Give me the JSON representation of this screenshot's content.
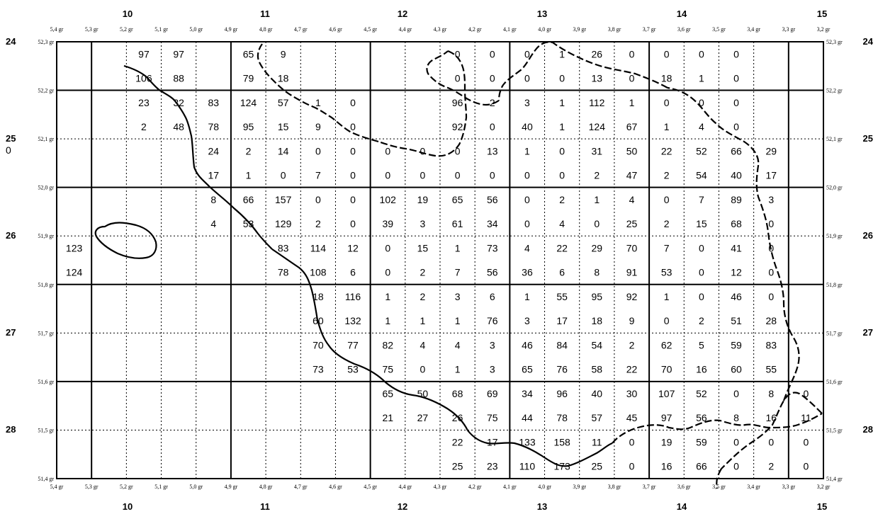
{
  "top_sheet_labels": [
    "10",
    "11",
    "12",
    "13",
    "14",
    "15"
  ],
  "bottom_sheet_labels": [
    "10",
    "11",
    "12",
    "13",
    "14",
    "15"
  ],
  "left_sheet_labels": [
    "24",
    "25",
    "26",
    "27",
    "28"
  ],
  "right_sheet_labels": [
    "24",
    "25",
    "26",
    "27",
    "28"
  ],
  "stray_label": "0",
  "longitude_ticks": [
    "5,4 gr",
    "5,3 gr",
    "5,2 gr",
    "5,1 gr",
    "5,0 gr",
    "4,9 gr",
    "4,8 gr",
    "4,7 gr",
    "4,6 gr",
    "4,5 gr",
    "4,4 gr",
    "4,3 gr",
    "4,2 gr",
    "4,1 gr",
    "4,0 gr",
    "3,9 gr",
    "3,8 gr",
    "3,7 gr",
    "3,6 gr",
    "3,5 gr",
    "3,4 gr",
    "3,3 gr",
    "3,2 gr"
  ],
  "latitude_ticks": [
    "52,3 gr",
    "52,2 gr",
    "52,1 gr",
    "52,0 gr",
    "51,9 gr",
    "51,8 gr",
    "51,7 gr",
    "51,6 gr",
    "51,5 gr",
    "51,4 gr"
  ],
  "cell_values": [
    {
      "lon": 5.15,
      "lat": 52.25,
      "top": "97",
      "bottom": "106"
    },
    {
      "lon": 5.05,
      "lat": 52.25,
      "top": "97",
      "bottom": "88"
    },
    {
      "lon": 4.85,
      "lat": 52.25,
      "top": "65",
      "bottom": "79"
    },
    {
      "lon": 4.75,
      "lat": 52.25,
      "top": "9",
      "bottom": "18"
    },
    {
      "lon": 4.25,
      "lat": 52.25,
      "top": "0",
      "bottom": "0"
    },
    {
      "lon": 4.15,
      "lat": 52.25,
      "top": "0",
      "bottom": "0"
    },
    {
      "lon": 4.05,
      "lat": 52.25,
      "top": "0",
      "bottom": "0"
    },
    {
      "lon": 3.95,
      "lat": 52.25,
      "top": "1",
      "bottom": "0"
    },
    {
      "lon": 3.85,
      "lat": 52.25,
      "top": "26",
      "bottom": "13"
    },
    {
      "lon": 3.75,
      "lat": 52.25,
      "top": "0",
      "bottom": "0"
    },
    {
      "lon": 3.65,
      "lat": 52.25,
      "top": "0",
      "bottom": "18"
    },
    {
      "lon": 3.55,
      "lat": 52.25,
      "top": "0",
      "bottom": "1"
    },
    {
      "lon": 3.45,
      "lat": 52.25,
      "top": "0",
      "bottom": "0"
    },
    {
      "lon": 5.15,
      "lat": 52.15,
      "top": "23",
      "bottom": "2"
    },
    {
      "lon": 5.05,
      "lat": 52.15,
      "top": "32",
      "bottom": "48"
    },
    {
      "lon": 4.95,
      "lat": 52.15,
      "top": "83",
      "bottom": "78"
    },
    {
      "lon": 4.85,
      "lat": 52.15,
      "top": "124",
      "bottom": "95"
    },
    {
      "lon": 4.75,
      "lat": 52.15,
      "top": "57",
      "bottom": "15"
    },
    {
      "lon": 4.65,
      "lat": 52.15,
      "top": "1",
      "bottom": "9"
    },
    {
      "lon": 4.55,
      "lat": 52.15,
      "top": "0",
      "bottom": "0"
    },
    {
      "lon": 4.25,
      "lat": 52.15,
      "top": "96",
      "bottom": "92"
    },
    {
      "lon": 4.15,
      "lat": 52.15,
      "top": "2",
      "bottom": "0"
    },
    {
      "lon": 4.05,
      "lat": 52.15,
      "top": "3",
      "bottom": "40"
    },
    {
      "lon": 3.95,
      "lat": 52.15,
      "top": "1",
      "bottom": "1"
    },
    {
      "lon": 3.85,
      "lat": 52.15,
      "top": "112",
      "bottom": "124"
    },
    {
      "lon": 3.75,
      "lat": 52.15,
      "top": "1",
      "bottom": "67"
    },
    {
      "lon": 3.65,
      "lat": 52.15,
      "top": "0",
      "bottom": "1"
    },
    {
      "lon": 3.55,
      "lat": 52.15,
      "top": "0",
      "bottom": "4"
    },
    {
      "lon": 3.45,
      "lat": 52.15,
      "top": "0",
      "bottom": "0"
    },
    {
      "lon": 4.95,
      "lat": 52.05,
      "top": "24",
      "bottom": "17"
    },
    {
      "lon": 4.85,
      "lat": 52.05,
      "top": "2",
      "bottom": "1"
    },
    {
      "lon": 4.75,
      "lat": 52.05,
      "top": "14",
      "bottom": "0"
    },
    {
      "lon": 4.65,
      "lat": 52.05,
      "top": "0",
      "bottom": "7"
    },
    {
      "lon": 4.55,
      "lat": 52.05,
      "top": "0",
      "bottom": "0"
    },
    {
      "lon": 4.45,
      "lat": 52.05,
      "top": "0",
      "bottom": "0"
    },
    {
      "lon": 4.35,
      "lat": 52.05,
      "top": "0",
      "bottom": "0"
    },
    {
      "lon": 4.25,
      "lat": 52.05,
      "top": "0",
      "bottom": "0"
    },
    {
      "lon": 4.15,
      "lat": 52.05,
      "top": "13",
      "bottom": "0"
    },
    {
      "lon": 4.05,
      "lat": 52.05,
      "top": "1",
      "bottom": "0"
    },
    {
      "lon": 3.95,
      "lat": 52.05,
      "top": "0",
      "bottom": "0"
    },
    {
      "lon": 3.85,
      "lat": 52.05,
      "top": "31",
      "bottom": "2"
    },
    {
      "lon": 3.75,
      "lat": 52.05,
      "top": "50",
      "bottom": "47"
    },
    {
      "lon": 3.65,
      "lat": 52.05,
      "top": "22",
      "bottom": "2"
    },
    {
      "lon": 3.55,
      "lat": 52.05,
      "top": "52",
      "bottom": "54"
    },
    {
      "lon": 3.45,
      "lat": 52.05,
      "top": "66",
      "bottom": "40"
    },
    {
      "lon": 3.35,
      "lat": 52.05,
      "top": "29",
      "bottom": "17"
    },
    {
      "lon": 4.95,
      "lat": 51.95,
      "top": "8",
      "bottom": "4"
    },
    {
      "lon": 4.85,
      "lat": 51.95,
      "top": "66",
      "bottom": "53"
    },
    {
      "lon": 4.75,
      "lat": 51.95,
      "top": "157",
      "bottom": "129"
    },
    {
      "lon": 4.65,
      "lat": 51.95,
      "top": "0",
      "bottom": "2"
    },
    {
      "lon": 4.55,
      "lat": 51.95,
      "top": "0",
      "bottom": "0"
    },
    {
      "lon": 4.45,
      "lat": 51.95,
      "top": "102",
      "bottom": "39"
    },
    {
      "lon": 4.35,
      "lat": 51.95,
      "top": "19",
      "bottom": "3"
    },
    {
      "lon": 4.25,
      "lat": 51.95,
      "top": "65",
      "bottom": "61"
    },
    {
      "lon": 4.15,
      "lat": 51.95,
      "top": "56",
      "bottom": "34"
    },
    {
      "lon": 4.05,
      "lat": 51.95,
      "top": "0",
      "bottom": "0"
    },
    {
      "lon": 3.95,
      "lat": 51.95,
      "top": "2",
      "bottom": "4"
    },
    {
      "lon": 3.85,
      "lat": 51.95,
      "top": "1",
      "bottom": "0"
    },
    {
      "lon": 3.75,
      "lat": 51.95,
      "top": "4",
      "bottom": "25"
    },
    {
      "lon": 3.65,
      "lat": 51.95,
      "top": "0",
      "bottom": "2"
    },
    {
      "lon": 3.55,
      "lat": 51.95,
      "top": "7",
      "bottom": "15"
    },
    {
      "lon": 3.45,
      "lat": 51.95,
      "top": "89",
      "bottom": "68"
    },
    {
      "lon": 3.35,
      "lat": 51.95,
      "top": "3",
      "bottom": "0"
    },
    {
      "lon": 5.35,
      "lat": 51.85,
      "top": "123",
      "bottom": "124"
    },
    {
      "lon": 4.75,
      "lat": 51.85,
      "top": "83",
      "bottom": "78"
    },
    {
      "lon": 4.65,
      "lat": 51.85,
      "top": "114",
      "bottom": "108"
    },
    {
      "lon": 4.55,
      "lat": 51.85,
      "top": "12",
      "bottom": "6"
    },
    {
      "lon": 4.45,
      "lat": 51.85,
      "top": "0",
      "bottom": "0"
    },
    {
      "lon": 4.35,
      "lat": 51.85,
      "top": "15",
      "bottom": "2"
    },
    {
      "lon": 4.25,
      "lat": 51.85,
      "top": "1",
      "bottom": "7"
    },
    {
      "lon": 4.15,
      "lat": 51.85,
      "top": "73",
      "bottom": "56"
    },
    {
      "lon": 4.05,
      "lat": 51.85,
      "top": "4",
      "bottom": "36"
    },
    {
      "lon": 3.95,
      "lat": 51.85,
      "top": "22",
      "bottom": "6"
    },
    {
      "lon": 3.85,
      "lat": 51.85,
      "top": "29",
      "bottom": "8"
    },
    {
      "lon": 3.75,
      "lat": 51.85,
      "top": "70",
      "bottom": "91"
    },
    {
      "lon": 3.65,
      "lat": 51.85,
      "top": "7",
      "bottom": "53"
    },
    {
      "lon": 3.55,
      "lat": 51.85,
      "top": "0",
      "bottom": "0"
    },
    {
      "lon": 3.45,
      "lat": 51.85,
      "top": "41",
      "bottom": "12"
    },
    {
      "lon": 3.35,
      "lat": 51.85,
      "top": "0",
      "bottom": "0"
    },
    {
      "lon": 4.65,
      "lat": 51.75,
      "top": "18",
      "bottom": "60"
    },
    {
      "lon": 4.55,
      "lat": 51.75,
      "top": "116",
      "bottom": "132"
    },
    {
      "lon": 4.45,
      "lat": 51.75,
      "top": "1",
      "bottom": "1"
    },
    {
      "lon": 4.35,
      "lat": 51.75,
      "top": "2",
      "bottom": "1"
    },
    {
      "lon": 4.25,
      "lat": 51.75,
      "top": "3",
      "bottom": "1"
    },
    {
      "lon": 4.15,
      "lat": 51.75,
      "top": "6",
      "bottom": "76"
    },
    {
      "lon": 4.05,
      "lat": 51.75,
      "top": "1",
      "bottom": "3"
    },
    {
      "lon": 3.95,
      "lat": 51.75,
      "top": "55",
      "bottom": "17"
    },
    {
      "lon": 3.85,
      "lat": 51.75,
      "top": "95",
      "bottom": "18"
    },
    {
      "lon": 3.75,
      "lat": 51.75,
      "top": "92",
      "bottom": "9"
    },
    {
      "lon": 3.65,
      "lat": 51.75,
      "top": "1",
      "bottom": "0"
    },
    {
      "lon": 3.55,
      "lat": 51.75,
      "top": "0",
      "bottom": "2"
    },
    {
      "lon": 3.45,
      "lat": 51.75,
      "top": "46",
      "bottom": "51"
    },
    {
      "lon": 3.35,
      "lat": 51.75,
      "top": "0",
      "bottom": "28"
    },
    {
      "lon": 4.65,
      "lat": 51.65,
      "top": "70",
      "bottom": "73"
    },
    {
      "lon": 4.55,
      "lat": 51.65,
      "top": "77",
      "bottom": "53"
    },
    {
      "lon": 4.45,
      "lat": 51.65,
      "top": "82",
      "bottom": "75"
    },
    {
      "lon": 4.35,
      "lat": 51.65,
      "top": "4",
      "bottom": "0"
    },
    {
      "lon": 4.25,
      "lat": 51.65,
      "top": "4",
      "bottom": "1"
    },
    {
      "lon": 4.15,
      "lat": 51.65,
      "top": "3",
      "bottom": "3"
    },
    {
      "lon": 4.05,
      "lat": 51.65,
      "top": "46",
      "bottom": "65"
    },
    {
      "lon": 3.95,
      "lat": 51.65,
      "top": "84",
      "bottom": "76"
    },
    {
      "lon": 3.85,
      "lat": 51.65,
      "top": "54",
      "bottom": "58"
    },
    {
      "lon": 3.75,
      "lat": 51.65,
      "top": "2",
      "bottom": "22"
    },
    {
      "lon": 3.65,
      "lat": 51.65,
      "top": "62",
      "bottom": "70"
    },
    {
      "lon": 3.55,
      "lat": 51.65,
      "top": "5",
      "bottom": "16"
    },
    {
      "lon": 3.45,
      "lat": 51.65,
      "top": "59",
      "bottom": "60"
    },
    {
      "lon": 3.35,
      "lat": 51.65,
      "top": "83",
      "bottom": "55"
    },
    {
      "lon": 4.45,
      "lat": 51.55,
      "top": "65",
      "bottom": "21"
    },
    {
      "lon": 4.35,
      "lat": 51.55,
      "top": "50",
      "bottom": "27"
    },
    {
      "lon": 4.25,
      "lat": 51.55,
      "top": "68",
      "bottom": "26"
    },
    {
      "lon": 4.15,
      "lat": 51.55,
      "top": "69",
      "bottom": "75"
    },
    {
      "lon": 4.05,
      "lat": 51.55,
      "top": "34",
      "bottom": "44"
    },
    {
      "lon": 3.95,
      "lat": 51.55,
      "top": "96",
      "bottom": "78"
    },
    {
      "lon": 3.85,
      "lat": 51.55,
      "top": "40",
      "bottom": "57"
    },
    {
      "lon": 3.75,
      "lat": 51.55,
      "top": "30",
      "bottom": "45"
    },
    {
      "lon": 3.65,
      "lat": 51.55,
      "top": "107",
      "bottom": "97"
    },
    {
      "lon": 3.55,
      "lat": 51.55,
      "top": "52",
      "bottom": "56"
    },
    {
      "lon": 3.45,
      "lat": 51.55,
      "top": "0",
      "bottom": "8"
    },
    {
      "lon": 3.35,
      "lat": 51.55,
      "top": "8",
      "bottom": "16"
    },
    {
      "lon": 3.25,
      "lat": 51.55,
      "top": "0",
      "bottom": "11"
    },
    {
      "lon": 4.25,
      "lat": 51.45,
      "top": "22",
      "bottom": "25"
    },
    {
      "lon": 4.15,
      "lat": 51.45,
      "top": "17",
      "bottom": "23"
    },
    {
      "lon": 4.05,
      "lat": 51.45,
      "top": "133",
      "bottom": "110"
    },
    {
      "lon": 3.95,
      "lat": 51.45,
      "top": "158",
      "bottom": "173"
    },
    {
      "lon": 3.85,
      "lat": 51.45,
      "top": "11",
      "bottom": "25"
    },
    {
      "lon": 3.75,
      "lat": 51.45,
      "top": "0",
      "bottom": "0"
    },
    {
      "lon": 3.65,
      "lat": 51.45,
      "top": "19",
      "bottom": "16"
    },
    {
      "lon": 3.55,
      "lat": 51.45,
      "top": "59",
      "bottom": "66"
    },
    {
      "lon": 3.45,
      "lat": 51.45,
      "top": "0",
      "bottom": "0"
    },
    {
      "lon": 3.35,
      "lat": 51.45,
      "top": "0",
      "bottom": "2"
    },
    {
      "lon": 3.25,
      "lat": 51.45,
      "top": "0",
      "bottom": "0"
    }
  ],
  "line_color": "#000000"
}
